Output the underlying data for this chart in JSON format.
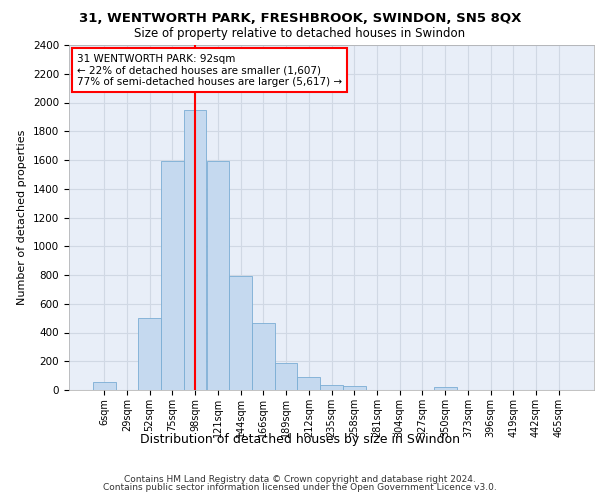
{
  "title1": "31, WENTWORTH PARK, FRESHBROOK, SWINDON, SN5 8QX",
  "title2": "Size of property relative to detached houses in Swindon",
  "xlabel": "Distribution of detached houses by size in Swindon",
  "ylabel": "Number of detached properties",
  "categories": [
    "6sqm",
    "29sqm",
    "52sqm",
    "75sqm",
    "98sqm",
    "121sqm",
    "144sqm",
    "166sqm",
    "189sqm",
    "212sqm",
    "235sqm",
    "258sqm",
    "281sqm",
    "304sqm",
    "327sqm",
    "350sqm",
    "373sqm",
    "396sqm",
    "419sqm",
    "442sqm",
    "465sqm"
  ],
  "values": [
    55,
    0,
    500,
    1590,
    1950,
    1590,
    790,
    465,
    190,
    90,
    35,
    25,
    0,
    0,
    0,
    20,
    0,
    0,
    0,
    0,
    0
  ],
  "bar_color": "#c5d9ef",
  "bar_edge_color": "#7aadd4",
  "grid_color": "#d0d8e4",
  "background_color": "#e8eef8",
  "vline_x_index": 4,
  "vline_color": "red",
  "annotation_text": "31 WENTWORTH PARK: 92sqm\n← 22% of detached houses are smaller (1,607)\n77% of semi-detached houses are larger (5,617) →",
  "annotation_box_color": "white",
  "annotation_box_edge": "red",
  "footer_line1": "Contains HM Land Registry data © Crown copyright and database right 2024.",
  "footer_line2": "Contains public sector information licensed under the Open Government Licence v3.0.",
  "ylim": [
    0,
    2400
  ],
  "yticks": [
    0,
    200,
    400,
    600,
    800,
    1000,
    1200,
    1400,
    1600,
    1800,
    2000,
    2200,
    2400
  ],
  "title1_fontsize": 9.5,
  "title2_fontsize": 8.5,
  "ylabel_fontsize": 8.0,
  "xlabel_fontsize": 9.0,
  "ytick_fontsize": 7.5,
  "xtick_fontsize": 7.0,
  "annot_fontsize": 7.5,
  "footer_fontsize": 6.5
}
